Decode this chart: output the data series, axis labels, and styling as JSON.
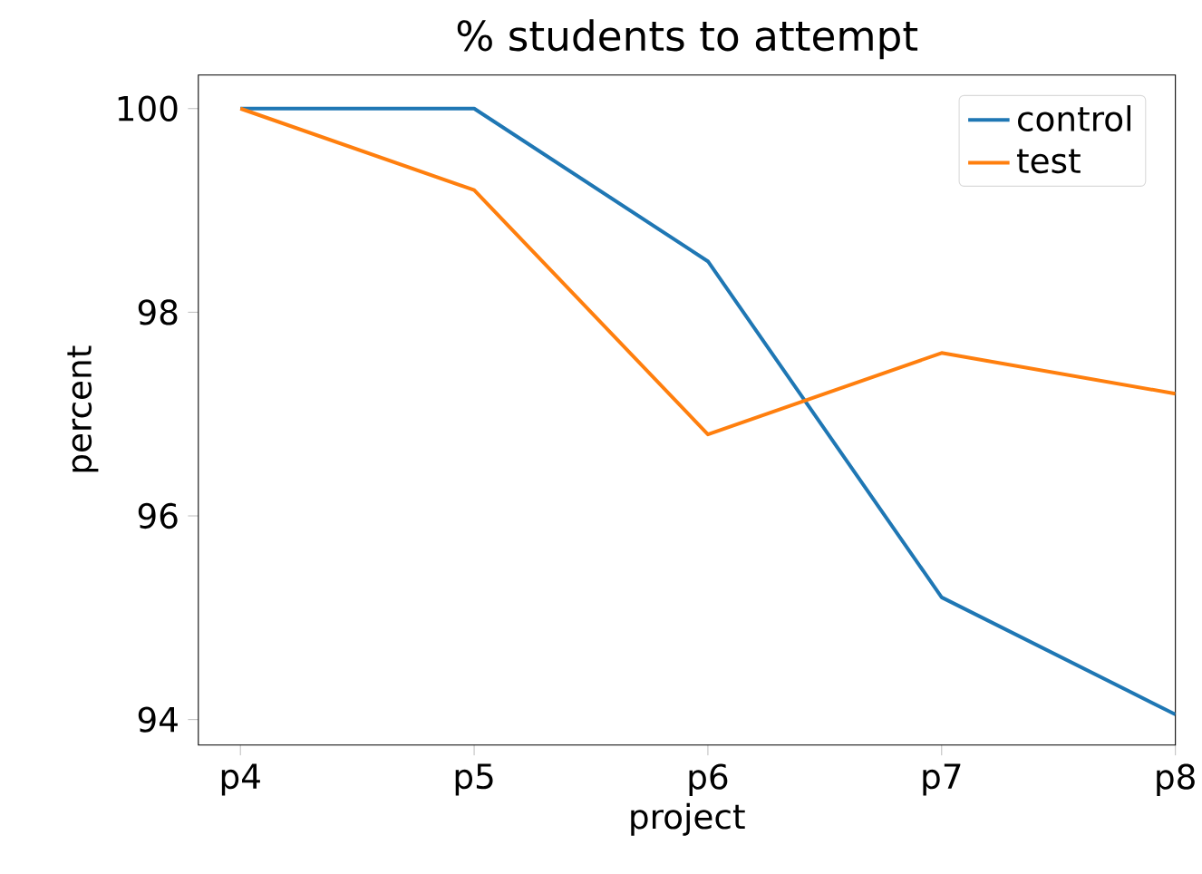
{
  "chart_data": {
    "type": "line",
    "title": "% students to attempt",
    "xlabel": "project",
    "ylabel": "percent",
    "categories": [
      "p4",
      "p5",
      "p6",
      "p7",
      "p8"
    ],
    "series": [
      {
        "name": "control",
        "color": "#1f77b4",
        "values": [
          100,
          100,
          98.5,
          95.2,
          94.05
        ]
      },
      {
        "name": "test",
        "color": "#ff7f0e",
        "values": [
          100,
          99.2,
          96.8,
          97.6,
          97.2
        ]
      }
    ],
    "ylim": [
      93.75,
      100.33
    ],
    "yticks": [
      94,
      96,
      98,
      100
    ],
    "grid": false,
    "legend": "top right",
    "marker": "none",
    "line_style": "solid"
  }
}
